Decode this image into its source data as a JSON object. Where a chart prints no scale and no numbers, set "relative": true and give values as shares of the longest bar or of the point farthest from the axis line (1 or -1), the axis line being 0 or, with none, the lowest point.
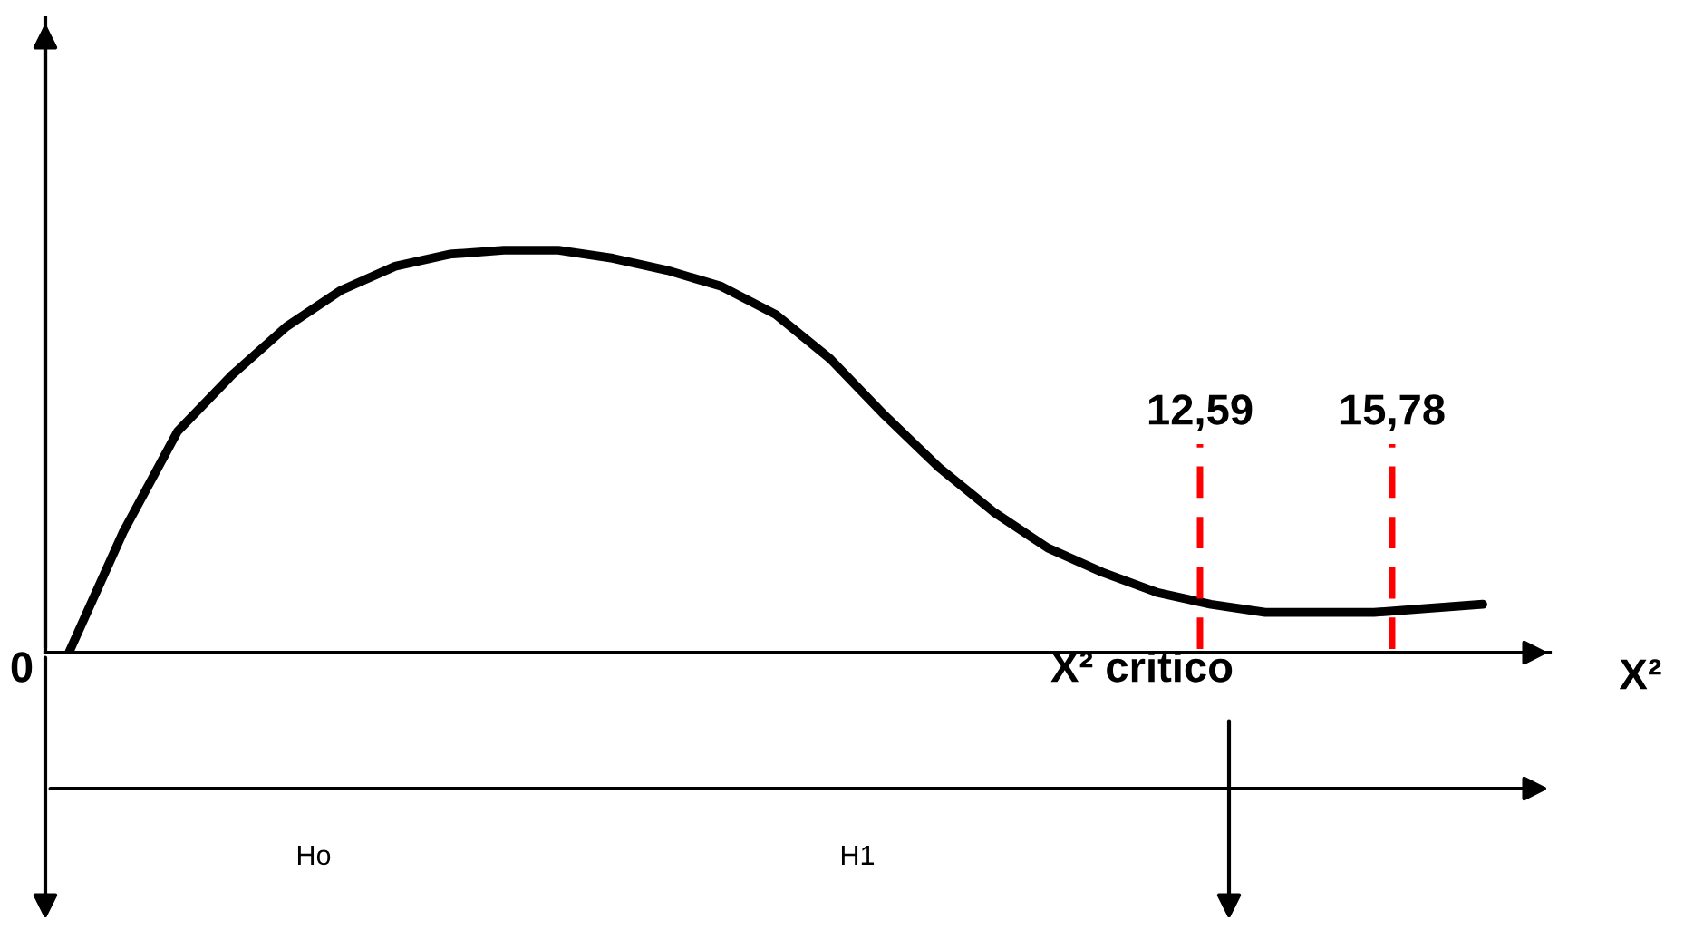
{
  "chart_data": {
    "type": "line",
    "relative": true,
    "xlabel": "X²",
    "categories": [
      null,
      null,
      null,
      null,
      null,
      null,
      null,
      null,
      null,
      null,
      null,
      null,
      null,
      null,
      null,
      null,
      null,
      null,
      null,
      null,
      null,
      null,
      null,
      null,
      null,
      null,
      null
    ],
    "values": [
      0,
      0.3,
      0.55,
      0.69,
      0.81,
      0.9,
      0.96,
      0.99,
      1,
      1,
      0.98,
      0.95,
      0.91,
      0.84,
      0.73,
      0.59,
      0.46,
      0.35,
      0.26,
      0.2,
      0.15,
      0.12,
      0.1,
      0.1,
      0.1,
      0.11,
      0.12
    ],
    "color": "#000000",
    "line_style": "solid",
    "marker": "none",
    "annotations": [
      "X² critico",
      "Ho",
      "H1",
      "0",
      "12,59",
      "15,78"
    ]
  }
}
